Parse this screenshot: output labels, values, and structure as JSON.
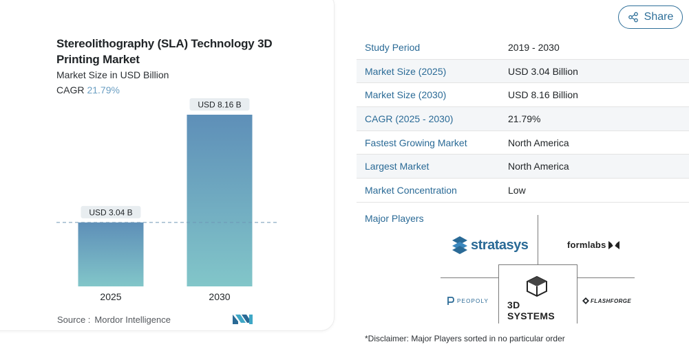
{
  "chart": {
    "title": "Stereolithography (SLA) Technology 3D Printing Market",
    "subtitle": "Market Size in USD Billion",
    "cagr_label": "CAGR",
    "cagr_value": "21.79%",
    "source_label": "Source :",
    "source_value": "Mordor Intelligence"
  },
  "chart_data": {
    "type": "bar",
    "categories": [
      "2025",
      "2030"
    ],
    "values": [
      3.04,
      8.16
    ],
    "data_labels": [
      "USD 3.04 B",
      "USD 8.16 B"
    ],
    "ylim": [
      0,
      8.16
    ],
    "reference_line_value": 3.04,
    "grid": false,
    "title": "Stereolithography (SLA) Technology 3D Printing Market",
    "ylabel": "Market Size in USD Billion",
    "xlabel": ""
  },
  "share": {
    "label": "Share",
    "icon": "share-icon"
  },
  "stats": [
    {
      "label": "Study Period",
      "value": "2019 - 2030"
    },
    {
      "label": "Market Size (2025)",
      "value": "USD 3.04 Billion"
    },
    {
      "label": "Market Size (2030)",
      "value": "USD 8.16 Billion"
    },
    {
      "label": "CAGR (2025 - 2030)",
      "value": "21.79%"
    },
    {
      "label": "Fastest Growing Market",
      "value": "North America"
    },
    {
      "label": "Largest Market",
      "value": "North America"
    },
    {
      "label": "Market Concentration",
      "value": "Low"
    }
  ],
  "players": {
    "label": "Major Players",
    "logos": [
      {
        "name": "stratasys",
        "text": "stratasys"
      },
      {
        "name": "formlabs",
        "text": "formlabs"
      },
      {
        "name": "peopoly",
        "text": "PEOPOLY"
      },
      {
        "name": "3d-systems",
        "text": "3D SYSTEMS"
      },
      {
        "name": "flashforge",
        "text": "FLASHFORGE"
      }
    ]
  },
  "disclaimer": "*Disclaimer: Major Players sorted in no particular order",
  "colors": {
    "bar_top": "#5e8fb8",
    "bar_bottom": "#82c6c9",
    "accent": "#2a6a96",
    "label_bg": "#e8edf0",
    "dashed_line": "#6f97b5"
  }
}
